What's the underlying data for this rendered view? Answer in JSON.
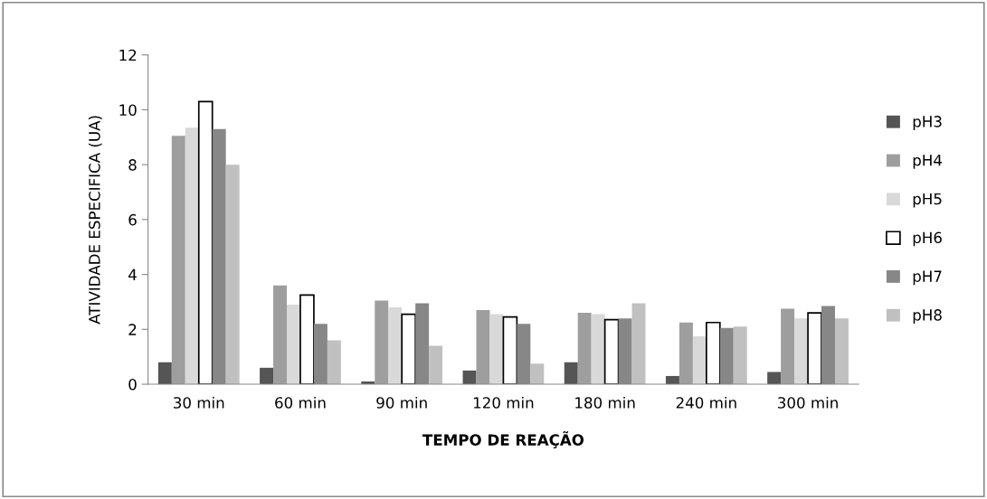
{
  "chart_data": {
    "type": "bar",
    "xlabel": "TEMPO DE REAÇÃO",
    "ylabel": "ATIVIDADE ESPECIFICA (UA)",
    "categories": [
      "30 min",
      "60 min",
      "90 min",
      "120 min",
      "180 min",
      "240 min",
      "300 min"
    ],
    "series": [
      {
        "name": "pH3",
        "color": "#555555",
        "values": [
          0.8,
          0.6,
          0.1,
          0.5,
          0.8,
          0.3,
          0.45
        ]
      },
      {
        "name": "pH4",
        "color": "#9e9e9e",
        "values": [
          9.05,
          3.6,
          3.05,
          2.7,
          2.6,
          2.25,
          2.75
        ]
      },
      {
        "name": "pH5",
        "color": "#d9d9d9",
        "values": [
          9.35,
          2.9,
          2.8,
          2.55,
          2.55,
          1.75,
          2.4
        ]
      },
      {
        "name": "pH6",
        "color": "#ffffff",
        "values": [
          10.3,
          3.25,
          2.55,
          2.45,
          2.35,
          2.25,
          2.6
        ]
      },
      {
        "name": "pH7",
        "color": "#878787",
        "values": [
          9.3,
          2.2,
          2.95,
          2.2,
          2.4,
          2.05,
          2.85
        ]
      },
      {
        "name": "pH8",
        "color": "#c0c0c0",
        "values": [
          8.0,
          1.6,
          1.4,
          0.75,
          2.95,
          2.1,
          2.4
        ]
      }
    ],
    "ylim": [
      0,
      12
    ],
    "yticks": [
      0,
      2,
      4,
      6,
      8,
      10,
      12
    ],
    "grid": false,
    "legend": "right"
  }
}
